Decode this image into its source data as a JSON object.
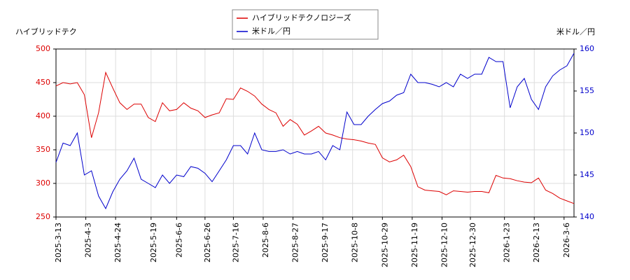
{
  "chart_data": {
    "type": "line",
    "ylabel": "ハイブリッドテク",
    "y2label": "米ドル／円",
    "x": [
      "2025-3-13",
      "2025-3-18",
      "2025-3-23",
      "2025-3-28",
      "2025-4-2",
      "2025-4-7",
      "2025-4-12",
      "2025-4-17",
      "2025-4-22",
      "2025-4-27",
      "2025-5-2",
      "2025-5-7",
      "2025-5-12",
      "2025-5-17",
      "2025-5-22",
      "2025-5-27",
      "2025-6-1",
      "2025-6-6",
      "2025-6-11",
      "2025-6-16",
      "2025-6-21",
      "2025-6-26",
      "2025-7-1",
      "2025-7-6",
      "2025-7-11",
      "2025-7-16",
      "2025-7-21",
      "2025-7-26",
      "2025-7-31",
      "2025-8-5",
      "2025-8-10",
      "2025-8-15",
      "2025-8-20",
      "2025-8-25",
      "2025-8-30",
      "2025-9-4",
      "2025-9-9",
      "2025-9-14",
      "2025-9-19",
      "2025-9-24",
      "2025-9-29",
      "2025-10-4",
      "2025-10-9",
      "2025-10-14",
      "2025-10-19",
      "2025-10-24",
      "2025-10-29",
      "2025-11-3",
      "2025-11-8",
      "2025-11-13",
      "2025-11-18",
      "2025-11-23",
      "2025-11-28",
      "2025-12-3",
      "2025-12-8",
      "2025-12-13",
      "2025-12-18",
      "2025-12-23",
      "2025-12-28",
      "2026-1-2",
      "2026-1-7",
      "2026-1-12",
      "2026-1-17",
      "2026-1-22",
      "2026-1-27",
      "2026-2-1",
      "2026-2-6",
      "2026-2-11",
      "2026-2-16",
      "2026-2-21",
      "2026-2-26",
      "2026-3-3",
      "2026-3-8",
      "2026-3-13"
    ],
    "series": [
      {
        "name": "ハイブリッドテクノロジーズ",
        "color": "#dd0000",
        "axis": "y",
        "values": [
          445,
          450,
          448,
          450,
          432,
          368,
          405,
          465,
          442,
          420,
          410,
          418,
          418,
          398,
          392,
          420,
          408,
          410,
          420,
          412,
          408,
          398,
          402,
          405,
          426,
          425,
          442,
          437,
          430,
          418,
          410,
          405,
          385,
          395,
          388,
          372,
          378,
          385,
          375,
          372,
          368,
          366,
          365,
          363,
          360,
          358,
          338,
          332,
          335,
          342,
          325,
          295,
          290,
          289,
          288,
          283,
          289,
          288,
          287,
          288,
          288,
          286,
          312,
          308,
          307,
          304,
          302,
          301,
          308,
          290,
          285,
          278,
          274,
          270
        ]
      },
      {
        "name": "米ドル／円",
        "color": "#0000cc",
        "axis": "y2",
        "values": [
          146.5,
          148.8,
          148.5,
          150,
          145,
          145.5,
          142.5,
          141,
          143,
          144.5,
          145.5,
          147,
          144.5,
          144,
          143.5,
          145,
          144,
          145,
          144.8,
          146,
          145.8,
          145.2,
          144.2,
          145.5,
          146.8,
          148.5,
          148.5,
          147.5,
          150,
          148,
          147.8,
          147.8,
          148,
          147.5,
          147.8,
          147.5,
          147.5,
          147.8,
          146.8,
          148.5,
          148,
          152.5,
          151,
          151,
          152,
          152.8,
          153.5,
          153.8,
          154.5,
          154.8,
          157,
          156,
          156,
          155.8,
          155.5,
          156,
          155.5,
          157,
          156.5,
          157,
          157,
          159,
          158.5,
          158.5,
          153,
          155.5,
          156.5,
          154,
          152.8,
          155.5,
          156.8,
          157.5,
          158,
          159.5
        ]
      }
    ],
    "xlim": [
      "2025-3-13",
      "2026-3-13"
    ],
    "xticks": [
      "2025-3-13",
      "2025-4-3",
      "2025-4-24",
      "2025-5-19",
      "2025-6-6",
      "2025-6-26",
      "2025-7-16",
      "2025-8-6",
      "2025-8-27",
      "2025-9-17",
      "2025-10-8",
      "2025-10-29",
      "2025-11-19",
      "2025-12-10",
      "2025-12-30",
      "2026-1-23",
      "2026-2-13",
      "2026-3-6"
    ],
    "ylim": [
      250,
      500
    ],
    "yticks": [
      250,
      300,
      350,
      400,
      450,
      500
    ],
    "y2lim": [
      140,
      160
    ],
    "y2ticks": [
      140,
      145,
      150,
      155,
      160
    ],
    "ytick_color": "#dd0000",
    "y2tick_color": "#0000cc",
    "grid": true,
    "legend": "top"
  }
}
